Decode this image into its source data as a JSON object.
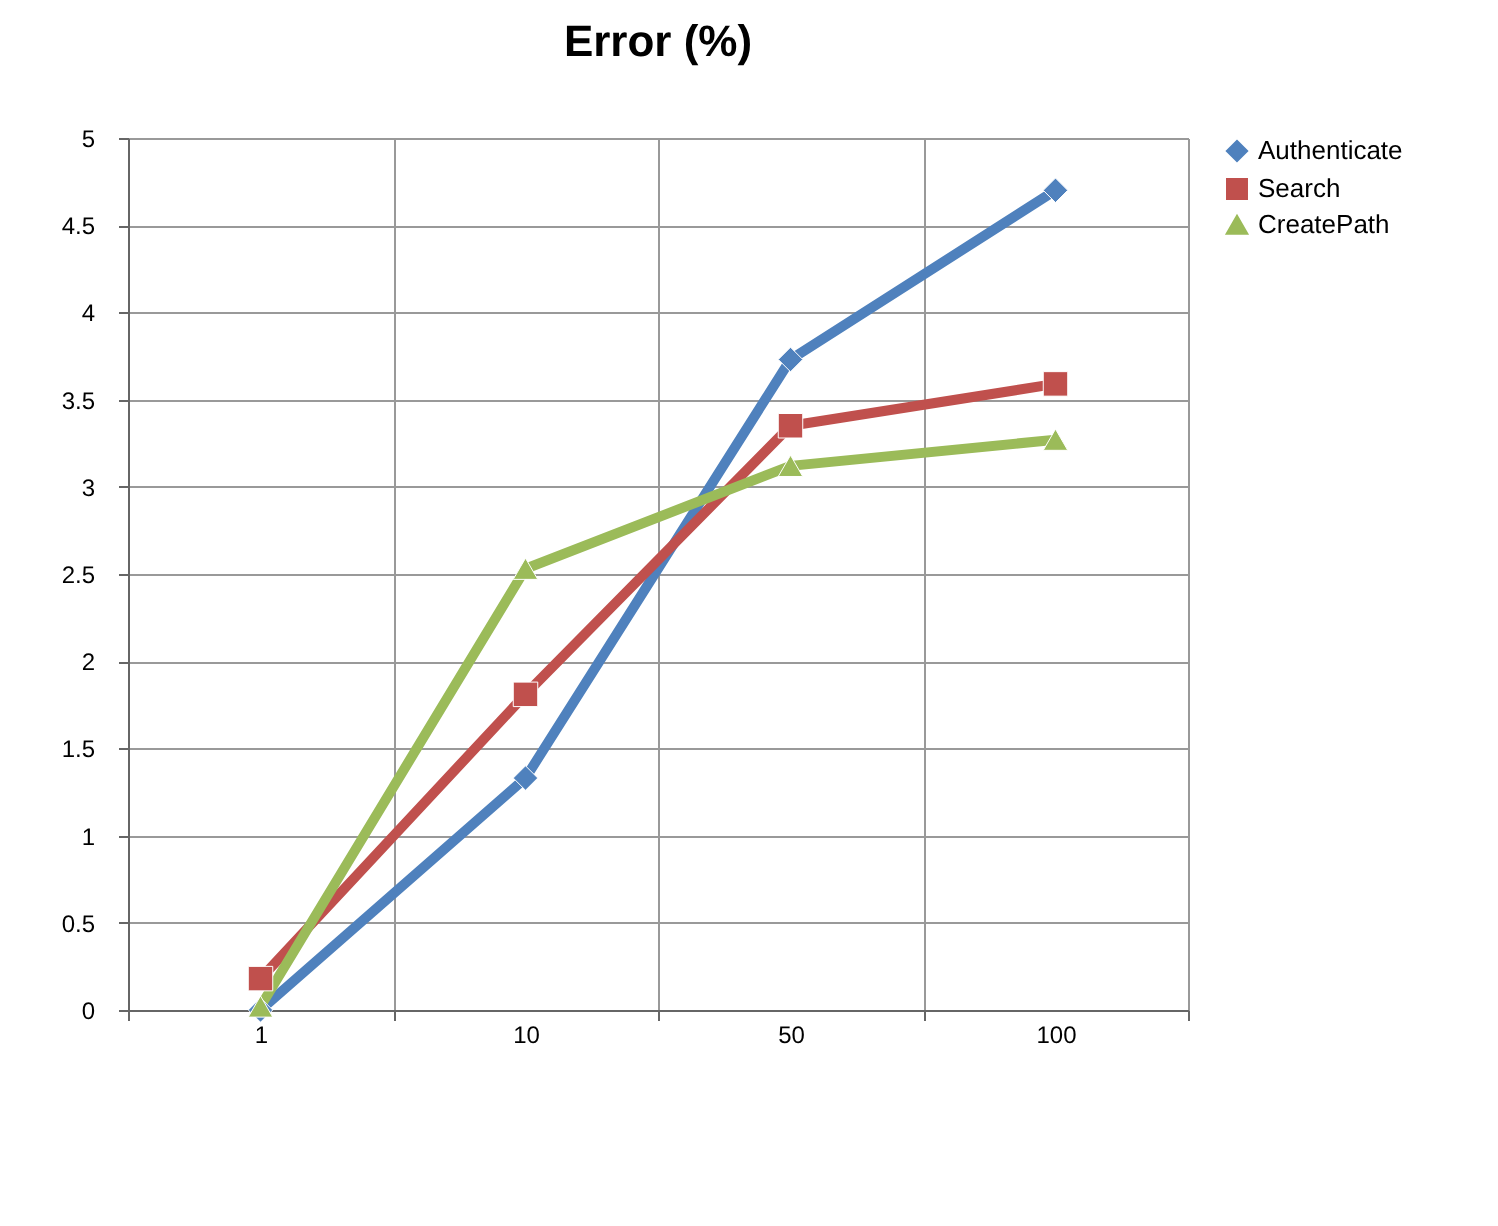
{
  "chart_data": {
    "type": "line",
    "title": "Error (%)",
    "categories": [
      "1",
      "10",
      "50",
      "100"
    ],
    "series": [
      {
        "name": "Authenticate",
        "color": "#4f81bd",
        "marker": "diamond",
        "values": [
          0,
          1.33,
          3.73,
          4.7
        ]
      },
      {
        "name": "Search",
        "color": "#c0504d",
        "marker": "square",
        "values": [
          0.18,
          1.81,
          3.35,
          3.59
        ]
      },
      {
        "name": "CreatePath",
        "color": "#9bbb59",
        "marker": "triangle",
        "values": [
          0.02,
          2.53,
          3.12,
          3.27
        ]
      }
    ],
    "ylim": [
      0,
      5
    ],
    "yticks": [
      0,
      0.5,
      1,
      1.5,
      2,
      2.5,
      3,
      3.5,
      4,
      4.5,
      5
    ],
    "grid": true,
    "legend": "right",
    "line_style": "solid"
  }
}
